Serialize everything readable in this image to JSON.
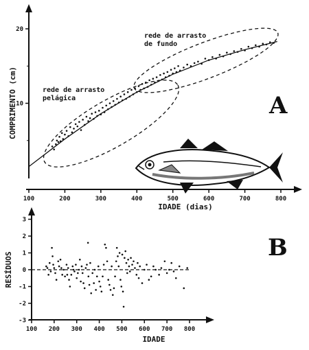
{
  "chart_data": [
    {
      "type": "scatter",
      "panel_label": "A",
      "xlabel": "IDADE (dias)",
      "ylabel": "COMPRIMENTO (cm)",
      "xlim": [
        100,
        850
      ],
      "ylim": [
        0,
        22
      ],
      "xticks": [
        "100",
        "200",
        "300",
        "400",
        "500",
        "600",
        "700",
        "800"
      ],
      "yticks": [
        "10",
        "20"
      ],
      "annotations": [
        {
          "lines": [
            "rede de arrasto",
            "pelágica"
          ]
        },
        {
          "lines": [
            "rede de arrasto",
            "de fundo"
          ]
        }
      ],
      "fit_curve": [
        [
          100,
          1.5
        ],
        [
          200,
          5.2
        ],
        [
          300,
          8.6
        ],
        [
          400,
          11.5
        ],
        [
          500,
          13.9
        ],
        [
          600,
          15.8
        ],
        [
          700,
          17.2
        ],
        [
          790,
          18.3
        ]
      ],
      "series": [
        {
          "values": [
            [
              165,
              4.2
            ],
            [
              170,
              3.8
            ],
            [
              175,
              4.5
            ],
            [
              178,
              5.0
            ],
            [
              182,
              4.8
            ],
            [
              185,
              5.5
            ],
            [
              188,
              4.9
            ],
            [
              192,
              6.0
            ],
            [
              195,
              5.2
            ],
            [
              200,
              5.8
            ],
            [
              205,
              6.3
            ],
            [
              210,
              5.6
            ],
            [
              215,
              6.8
            ],
            [
              220,
              6.1
            ],
            [
              225,
              6.6
            ],
            [
              230,
              7.2
            ],
            [
              235,
              6.9
            ],
            [
              240,
              7.5
            ],
            [
              245,
              6.4
            ],
            [
              250,
              7.8
            ],
            [
              255,
              7.1
            ],
            [
              260,
              8.2
            ],
            [
              265,
              7.6
            ],
            [
              270,
              8.0
            ],
            [
              275,
              8.6
            ],
            [
              280,
              7.9
            ],
            [
              285,
              8.8
            ],
            [
              290,
              8.3
            ],
            [
              295,
              9.0
            ],
            [
              300,
              8.5
            ],
            [
              305,
              9.4
            ],
            [
              310,
              8.8
            ],
            [
              315,
              9.7
            ],
            [
              320,
              9.2
            ],
            [
              325,
              10.0
            ],
            [
              330,
              9.5
            ],
            [
              335,
              10.3
            ],
            [
              340,
              9.8
            ],
            [
              345,
              10.6
            ],
            [
              350,
              10.1
            ],
            [
              355,
              10.9
            ],
            [
              360,
              10.4
            ],
            [
              365,
              11.2
            ],
            [
              370,
              10.6
            ],
            [
              375,
              11.5
            ],
            [
              380,
              10.9
            ],
            [
              385,
              11.8
            ],
            [
              390,
              11.2
            ],
            [
              395,
              12.0
            ],
            [
              400,
              11.5
            ],
            [
              405,
              12.3
            ],
            [
              410,
              11.8
            ],
            [
              415,
              12.6
            ],
            [
              420,
              12.0
            ],
            [
              425,
              12.8
            ],
            [
              430,
              12.2
            ],
            [
              435,
              13.1
            ],
            [
              440,
              12.5
            ],
            [
              445,
              13.3
            ],
            [
              450,
              12.8
            ],
            [
              455,
              13.5
            ],
            [
              460,
              13.0
            ],
            [
              465,
              13.8
            ],
            [
              470,
              13.2
            ],
            [
              475,
              14.0
            ],
            [
              480,
              13.5
            ],
            [
              485,
              14.2
            ],
            [
              490,
              13.7
            ],
            [
              495,
              14.5
            ],
            [
              500,
              14.0
            ],
            [
              505,
              14.7
            ],
            [
              510,
              14.2
            ],
            [
              515,
              15.0
            ],
            [
              520,
              14.4
            ],
            [
              530,
              14.8
            ],
            [
              540,
              15.2
            ],
            [
              550,
              15.0
            ],
            [
              560,
              15.4
            ],
            [
              570,
              15.6
            ],
            [
              580,
              15.3
            ],
            [
              590,
              16.0
            ],
            [
              600,
              15.8
            ],
            [
              610,
              16.2
            ],
            [
              620,
              16.0
            ],
            [
              630,
              16.5
            ],
            [
              640,
              16.3
            ],
            [
              650,
              16.8
            ],
            [
              660,
              16.6
            ],
            [
              670,
              17.0
            ],
            [
              680,
              16.9
            ],
            [
              690,
              17.3
            ],
            [
              700,
              17.1
            ],
            [
              710,
              17.6
            ],
            [
              720,
              17.4
            ],
            [
              730,
              17.8
            ],
            [
              740,
              17.6
            ],
            [
              750,
              18.0
            ],
            [
              760,
              17.9
            ],
            [
              770,
              18.2
            ],
            [
              780,
              18.1
            ]
          ]
        }
      ]
    },
    {
      "type": "scatter",
      "panel_label": "B",
      "xlabel": "IDADE",
      "ylabel": "RESÍDUOS",
      "xlim": [
        100,
        850
      ],
      "ylim": [
        -3,
        3
      ],
      "xticks": [
        "100",
        "200",
        "300",
        "400",
        "500",
        "600",
        "700",
        "800"
      ],
      "yticks": [
        "-3",
        "-2",
        "-1",
        "0",
        "1",
        "2",
        "3"
      ],
      "zero_line": true,
      "series": [
        {
          "values": [
            [
              165,
              0.2
            ],
            [
              170,
              0.1
            ],
            [
              175,
              -0.3
            ],
            [
              180,
              0.4
            ],
            [
              185,
              -0.1
            ],
            [
              190,
              1.3
            ],
            [
              193,
              0.8
            ],
            [
              196,
              0.3
            ],
            [
              200,
              0.1
            ],
            [
              205,
              -0.2
            ],
            [
              210,
              -0.6
            ],
            [
              218,
              0.5
            ],
            [
              222,
              0.2
            ],
            [
              228,
              0.6
            ],
            [
              232,
              0.1
            ],
            [
              236,
              -0.3
            ],
            [
              242,
              0.0
            ],
            [
              248,
              -0.4
            ],
            [
              255,
              0.3
            ],
            [
              258,
              -0.3
            ],
            [
              262,
              0.1
            ],
            [
              266,
              -0.6
            ],
            [
              270,
              -1.0
            ],
            [
              276,
              -0.3
            ],
            [
              282,
              0.2
            ],
            [
              286,
              0.0
            ],
            [
              290,
              -0.1
            ],
            [
              296,
              0.3
            ],
            [
              300,
              -0.5
            ],
            [
              305,
              -0.2
            ],
            [
              310,
              0.0
            ],
            [
              314,
              0.6
            ],
            [
              318,
              -0.7
            ],
            [
              322,
              0.2
            ],
            [
              326,
              -0.2
            ],
            [
              330,
              -0.8
            ],
            [
              335,
              -1.1
            ],
            [
              340,
              0.1
            ],
            [
              345,
              0.3
            ],
            [
              350,
              1.6
            ],
            [
              352,
              -0.4
            ],
            [
              356,
              -0.9
            ],
            [
              360,
              0.4
            ],
            [
              364,
              -1.4
            ],
            [
              370,
              -0.2
            ],
            [
              376,
              -0.8
            ],
            [
              380,
              0.0
            ],
            [
              385,
              -1.2
            ],
            [
              390,
              -0.4
            ],
            [
              396,
              0.2
            ],
            [
              400,
              -0.7
            ],
            [
              405,
              -1.0
            ],
            [
              410,
              -1.3
            ],
            [
              415,
              -0.4
            ],
            [
              420,
              0.3
            ],
            [
              425,
              1.5
            ],
            [
              430,
              1.3
            ],
            [
              435,
              0.5
            ],
            [
              440,
              -0.6
            ],
            [
              445,
              -0.9
            ],
            [
              450,
              -1.2
            ],
            [
              455,
              0.2
            ],
            [
              460,
              -1.5
            ],
            [
              465,
              -1.1
            ],
            [
              470,
              -0.4
            ],
            [
              475,
              0.5
            ],
            [
              478,
              1.3
            ],
            [
              482,
              0.8
            ],
            [
              486,
              0.2
            ],
            [
              490,
              1.0
            ],
            [
              494,
              -0.6
            ],
            [
              498,
              -1.0
            ],
            [
              502,
              0.9
            ],
            [
              505,
              -1.3
            ],
            [
              508,
              -2.2
            ],
            [
              512,
              0.7
            ],
            [
              516,
              1.1
            ],
            [
              520,
              0.4
            ],
            [
              524,
              -0.2
            ],
            [
              528,
              0.6
            ],
            [
              532,
              0.2
            ],
            [
              536,
              -0.1
            ],
            [
              540,
              0.7
            ],
            [
              546,
              0.3
            ],
            [
              552,
              0.5
            ],
            [
              558,
              0.1
            ],
            [
              565,
              -0.3
            ],
            [
              570,
              0.4
            ],
            [
              575,
              -0.5
            ],
            [
              580,
              0.2
            ],
            [
              590,
              -0.8
            ],
            [
              600,
              0.0
            ],
            [
              610,
              0.3
            ],
            [
              620,
              -0.6
            ],
            [
              630,
              -0.4
            ],
            [
              640,
              0.2
            ],
            [
              650,
              0.0
            ],
            [
              665,
              -0.3
            ],
            [
              675,
              0.1
            ],
            [
              690,
              0.5
            ],
            [
              700,
              -0.2
            ],
            [
              710,
              0.0
            ],
            [
              720,
              0.4
            ],
            [
              730,
              -0.1
            ],
            [
              740,
              -0.5
            ],
            [
              755,
              0.2
            ],
            [
              775,
              -1.1
            ],
            [
              790,
              0.1
            ]
          ]
        }
      ]
    }
  ]
}
